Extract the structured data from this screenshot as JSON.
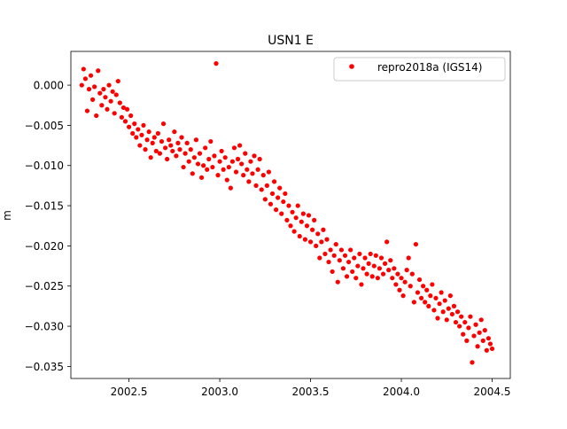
{
  "chart_data": {
    "type": "scatter",
    "title": "USN1 E",
    "xlabel": "",
    "ylabel": "m",
    "xlim": [
      2002.18,
      2004.6
    ],
    "ylim": [
      -0.0365,
      0.0042
    ],
    "x_ticks": [
      2002.5,
      2003.0,
      2003.5,
      2004.0,
      2004.5
    ],
    "x_tick_labels": [
      "2002.5",
      "2003.0",
      "2003.5",
      "2004.0",
      "2004.5"
    ],
    "y_ticks": [
      0.0,
      -0.005,
      -0.01,
      -0.015,
      -0.02,
      -0.025,
      -0.03,
      -0.035
    ],
    "y_tick_labels": [
      "0.000",
      "−0.005",
      "−0.010",
      "−0.015",
      "−0.020",
      "−0.025",
      "−0.030",
      "−0.035"
    ],
    "grid": false,
    "legend": {
      "position": "top-right",
      "entries": [
        "repro2018a (IGS14)"
      ]
    },
    "series": [
      {
        "name": "repro2018a (IGS14)",
        "color": "#ff0000",
        "marker": "circle",
        "points": [
          [
            2002.24,
            0.0
          ],
          [
            2002.25,
            0.002
          ],
          [
            2002.26,
            0.0008
          ],
          [
            2002.27,
            -0.0032
          ],
          [
            2002.28,
            -0.0005
          ],
          [
            2002.29,
            0.0012
          ],
          [
            2002.3,
            -0.0018
          ],
          [
            2002.31,
            -0.0002
          ],
          [
            2002.32,
            -0.0038
          ],
          [
            2002.33,
            0.0018
          ],
          [
            2002.34,
            -0.001
          ],
          [
            2002.35,
            -0.0025
          ],
          [
            2002.36,
            -0.0005
          ],
          [
            2002.37,
            -0.0015
          ],
          [
            2002.38,
            -0.003
          ],
          [
            2002.39,
            0.0
          ],
          [
            2002.4,
            -0.002
          ],
          [
            2002.41,
            -0.0008
          ],
          [
            2002.42,
            -0.0035
          ],
          [
            2002.43,
            -0.0012
          ],
          [
            2002.44,
            0.0005
          ],
          [
            2002.45,
            -0.0022
          ],
          [
            2002.46,
            -0.004
          ],
          [
            2002.47,
            -0.0028
          ],
          [
            2002.48,
            -0.0045
          ],
          [
            2002.49,
            -0.003
          ],
          [
            2002.5,
            -0.0052
          ],
          [
            2002.51,
            -0.0038
          ],
          [
            2002.52,
            -0.006
          ],
          [
            2002.53,
            -0.0048
          ],
          [
            2002.54,
            -0.0065
          ],
          [
            2002.55,
            -0.0055
          ],
          [
            2002.56,
            -0.0075
          ],
          [
            2002.57,
            -0.0062
          ],
          [
            2002.58,
            -0.005
          ],
          [
            2002.59,
            -0.008
          ],
          [
            2002.6,
            -0.0068
          ],
          [
            2002.61,
            -0.0058
          ],
          [
            2002.62,
            -0.009
          ],
          [
            2002.63,
            -0.0072
          ],
          [
            2002.64,
            -0.0065
          ],
          [
            2002.65,
            -0.0082
          ],
          [
            2002.66,
            -0.006
          ],
          [
            2002.67,
            -0.0085
          ],
          [
            2002.68,
            -0.007
          ],
          [
            2002.69,
            -0.0048
          ],
          [
            2002.7,
            -0.0078
          ],
          [
            2002.71,
            -0.0092
          ],
          [
            2002.72,
            -0.0068
          ],
          [
            2002.73,
            -0.0075
          ],
          [
            2002.74,
            -0.0082
          ],
          [
            2002.75,
            -0.0058
          ],
          [
            2002.76,
            -0.0088
          ],
          [
            2002.77,
            -0.0072
          ],
          [
            2002.78,
            -0.008
          ],
          [
            2002.79,
            -0.0065
          ],
          [
            2002.8,
            -0.0102
          ],
          [
            2002.81,
            -0.0085
          ],
          [
            2002.82,
            -0.0072
          ],
          [
            2002.83,
            -0.0095
          ],
          [
            2002.84,
            -0.008
          ],
          [
            2002.85,
            -0.011
          ],
          [
            2002.86,
            -0.009
          ],
          [
            2002.87,
            -0.0068
          ],
          [
            2002.88,
            -0.0098
          ],
          [
            2002.89,
            -0.0085
          ],
          [
            2002.9,
            -0.0115
          ],
          [
            2002.91,
            -0.01
          ],
          [
            2002.92,
            -0.0078
          ],
          [
            2002.93,
            -0.0105
          ],
          [
            2002.94,
            -0.0092
          ],
          [
            2002.95,
            -0.007
          ],
          [
            2002.96,
            -0.0102
          ],
          [
            2002.97,
            -0.0088
          ],
          [
            2002.98,
            0.0027
          ],
          [
            2002.99,
            -0.0112
          ],
          [
            2003.0,
            -0.0095
          ],
          [
            2003.01,
            -0.0082
          ],
          [
            2003.02,
            -0.0105
          ],
          [
            2003.03,
            -0.009
          ],
          [
            2003.04,
            -0.0118
          ],
          [
            2003.05,
            -0.0102
          ],
          [
            2003.06,
            -0.0128
          ],
          [
            2003.07,
            -0.0095
          ],
          [
            2003.08,
            -0.0078
          ],
          [
            2003.09,
            -0.0108
          ],
          [
            2003.1,
            -0.0092
          ],
          [
            2003.11,
            -0.0075
          ],
          [
            2003.12,
            -0.0098
          ],
          [
            2003.13,
            -0.0112
          ],
          [
            2003.14,
            -0.0085
          ],
          [
            2003.15,
            -0.0105
          ],
          [
            2003.16,
            -0.012
          ],
          [
            2003.17,
            -0.0095
          ],
          [
            2003.18,
            -0.011
          ],
          [
            2003.19,
            -0.0088
          ],
          [
            2003.2,
            -0.0125
          ],
          [
            2003.21,
            -0.0105
          ],
          [
            2003.22,
            -0.0092
          ],
          [
            2003.23,
            -0.013
          ],
          [
            2003.24,
            -0.0112
          ],
          [
            2003.25,
            -0.0142
          ],
          [
            2003.26,
            -0.0125
          ],
          [
            2003.27,
            -0.0108
          ],
          [
            2003.28,
            -0.0148
          ],
          [
            2003.29,
            -0.0135
          ],
          [
            2003.3,
            -0.012
          ],
          [
            2003.31,
            -0.0155
          ],
          [
            2003.32,
            -0.014
          ],
          [
            2003.33,
            -0.0128
          ],
          [
            2003.34,
            -0.016
          ],
          [
            2003.35,
            -0.0145
          ],
          [
            2003.36,
            -0.0135
          ],
          [
            2003.37,
            -0.0168
          ],
          [
            2003.38,
            -0.015
          ],
          [
            2003.39,
            -0.0175
          ],
          [
            2003.4,
            -0.0158
          ],
          [
            2003.41,
            -0.0182
          ],
          [
            2003.42,
            -0.0165
          ],
          [
            2003.43,
            -0.015
          ],
          [
            2003.44,
            -0.0188
          ],
          [
            2003.45,
            -0.017
          ],
          [
            2003.46,
            -0.016
          ],
          [
            2003.47,
            -0.0192
          ],
          [
            2003.48,
            -0.0175
          ],
          [
            2003.49,
            -0.0162
          ],
          [
            2003.5,
            -0.0195
          ],
          [
            2003.51,
            -0.018
          ],
          [
            2003.52,
            -0.0168
          ],
          [
            2003.53,
            -0.02
          ],
          [
            2003.54,
            -0.0185
          ],
          [
            2003.55,
            -0.0215
          ],
          [
            2003.56,
            -0.0195
          ],
          [
            2003.57,
            -0.018
          ],
          [
            2003.58,
            -0.021
          ],
          [
            2003.59,
            -0.0192
          ],
          [
            2003.6,
            -0.022
          ],
          [
            2003.61,
            -0.0205
          ],
          [
            2003.62,
            -0.0232
          ],
          [
            2003.63,
            -0.0212
          ],
          [
            2003.64,
            -0.0198
          ],
          [
            2003.65,
            -0.0245
          ],
          [
            2003.66,
            -0.0218
          ],
          [
            2003.67,
            -0.0205
          ],
          [
            2003.68,
            -0.0228
          ],
          [
            2003.69,
            -0.0212
          ],
          [
            2003.7,
            -0.0238
          ],
          [
            2003.71,
            -0.022
          ],
          [
            2003.72,
            -0.0205
          ],
          [
            2003.73,
            -0.0232
          ],
          [
            2003.74,
            -0.0215
          ],
          [
            2003.75,
            -0.024
          ],
          [
            2003.76,
            -0.0225
          ],
          [
            2003.77,
            -0.021
          ],
          [
            2003.78,
            -0.0248
          ],
          [
            2003.79,
            -0.0228
          ],
          [
            2003.8,
            -0.0215
          ],
          [
            2003.81,
            -0.0235
          ],
          [
            2003.82,
            -0.0222
          ],
          [
            2003.83,
            -0.021
          ],
          [
            2003.84,
            -0.0238
          ],
          [
            2003.85,
            -0.0225
          ],
          [
            2003.86,
            -0.0212
          ],
          [
            2003.87,
            -0.024
          ],
          [
            2003.88,
            -0.0228
          ],
          [
            2003.89,
            -0.0215
          ],
          [
            2003.9,
            -0.0235
          ],
          [
            2003.91,
            -0.0222
          ],
          [
            2003.92,
            -0.0195
          ],
          [
            2003.93,
            -0.023
          ],
          [
            2003.94,
            -0.0218
          ],
          [
            2003.95,
            -0.024
          ],
          [
            2003.96,
            -0.0228
          ],
          [
            2003.97,
            -0.0248
          ],
          [
            2003.98,
            -0.0235
          ],
          [
            2003.99,
            -0.0255
          ],
          [
            2004.0,
            -0.024
          ],
          [
            2004.01,
            -0.0262
          ],
          [
            2004.02,
            -0.0245
          ],
          [
            2004.03,
            -0.023
          ],
          [
            2004.04,
            -0.0215
          ],
          [
            2004.05,
            -0.025
          ],
          [
            2004.06,
            -0.0235
          ],
          [
            2004.07,
            -0.027
          ],
          [
            2004.08,
            -0.0198
          ],
          [
            2004.09,
            -0.0258
          ],
          [
            2004.1,
            -0.0242
          ],
          [
            2004.11,
            -0.0265
          ],
          [
            2004.12,
            -0.025
          ],
          [
            2004.13,
            -0.027
          ],
          [
            2004.14,
            -0.0255
          ],
          [
            2004.15,
            -0.0275
          ],
          [
            2004.16,
            -0.0262
          ],
          [
            2004.17,
            -0.0248
          ],
          [
            2004.18,
            -0.028
          ],
          [
            2004.19,
            -0.0265
          ],
          [
            2004.2,
            -0.029
          ],
          [
            2004.21,
            -0.0272
          ],
          [
            2004.22,
            -0.0258
          ],
          [
            2004.23,
            -0.0282
          ],
          [
            2004.24,
            -0.0268
          ],
          [
            2004.25,
            -0.0292
          ],
          [
            2004.26,
            -0.0278
          ],
          [
            2004.27,
            -0.0262
          ],
          [
            2004.28,
            -0.0285
          ],
          [
            2004.29,
            -0.0275
          ],
          [
            2004.3,
            -0.0295
          ],
          [
            2004.31,
            -0.0282
          ],
          [
            2004.32,
            -0.03
          ],
          [
            2004.33,
            -0.0288
          ],
          [
            2004.34,
            -0.031
          ],
          [
            2004.35,
            -0.0295
          ],
          [
            2004.36,
            -0.0318
          ],
          [
            2004.37,
            -0.0302
          ],
          [
            2004.38,
            -0.0288
          ],
          [
            2004.39,
            -0.0345
          ],
          [
            2004.4,
            -0.0312
          ],
          [
            2004.41,
            -0.0298
          ],
          [
            2004.42,
            -0.0325
          ],
          [
            2004.43,
            -0.0308
          ],
          [
            2004.44,
            -0.0292
          ],
          [
            2004.45,
            -0.0318
          ],
          [
            2004.46,
            -0.0305
          ],
          [
            2004.47,
            -0.033
          ],
          [
            2004.48,
            -0.0315
          ],
          [
            2004.49,
            -0.0322
          ],
          [
            2004.5,
            -0.0328
          ]
        ]
      }
    ]
  }
}
